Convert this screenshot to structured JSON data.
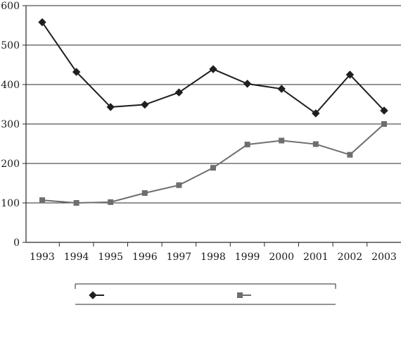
{
  "chart_data": {
    "type": "line",
    "title": "",
    "xlabel": "",
    "ylabel": "",
    "categories": [
      "1993",
      "1994",
      "1995",
      "1996",
      "1997",
      "1998",
      "1999",
      "2000",
      "2001",
      "2002",
      "2003"
    ],
    "ylim": [
      0,
      600
    ],
    "yticks": [
      0,
      100,
      200,
      300,
      400,
      500,
      600
    ],
    "grid": "horizontal",
    "legend_position": "bottom",
    "series": [
      {
        "marker": "diamond",
        "color": "#1f1f1f",
        "values": [
          558,
          432,
          343,
          349,
          380,
          439,
          402,
          389,
          327,
          425,
          334
        ]
      },
      {
        "marker": "square",
        "color": "#6e6e6e",
        "values": [
          107,
          100,
          102,
          125,
          145,
          189,
          248,
          258,
          249,
          222,
          300
        ]
      }
    ]
  }
}
